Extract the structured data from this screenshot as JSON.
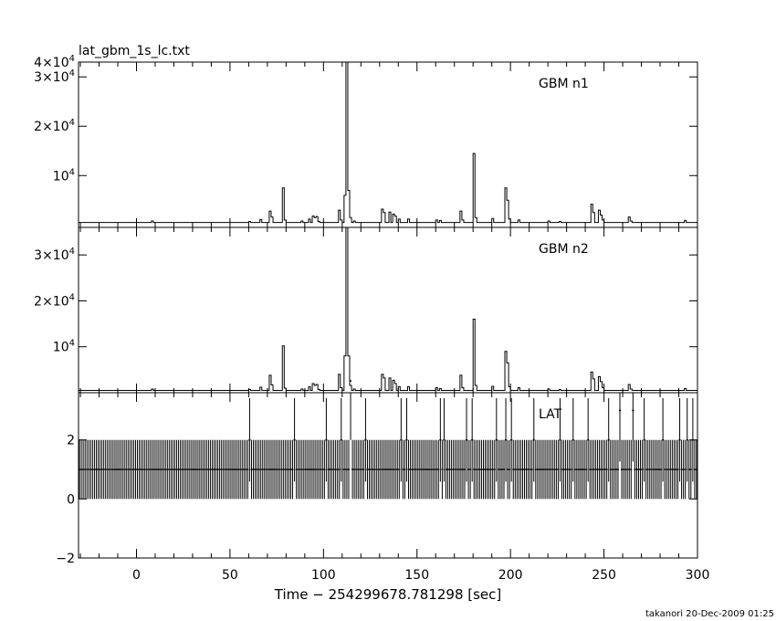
{
  "chart_data": {
    "type": "line",
    "title": "lat_gbm_1s_lc.txt",
    "xlabel": "Time − 254299678.781298 [sec]",
    "xlim": [
      -31,
      300
    ],
    "x_ticks": [
      0,
      50,
      100,
      150,
      200,
      250,
      300
    ],
    "x_tick_labels": [
      "0",
      "50",
      "100",
      "150",
      "200",
      "250",
      "300"
    ],
    "grid": false,
    "footer": "takanori 20-Dec-2009 01:25",
    "panels": [
      {
        "name": "GBM n1",
        "type": "line",
        "ylim": [
          -500,
          33000
        ],
        "y_ticks": [
          10000,
          20000,
          30000,
          40000
        ],
        "y_tick_labels": [
          {
            "mantissa": "",
            "exponent": "4"
          },
          {
            "mantissa": "2×",
            "exponent": "4"
          },
          {
            "mantissa": "3×",
            "exponent": "4"
          },
          {
            "mantissa": "4×",
            "exponent": "4"
          }
        ],
        "baseline": 500,
        "series": [
          {
            "name": "GBM n1",
            "x": [
              8,
              60,
              66,
              71,
              72,
              78,
              79,
              88,
              92,
              94,
              95,
              96,
              97,
              108,
              109,
              111,
              112,
              113,
              114,
              116,
              131,
              132,
              135,
              137,
              138,
              140,
              145,
              160,
              162,
              173,
              174,
              180,
              181,
              190,
              197,
              198,
              199,
              204,
              220,
              226,
              243,
              244,
              247,
              248,
              249,
              263,
              264,
              293
            ],
            "y": [
              800,
              700,
              1100,
              2800,
              1600,
              7500,
              1000,
              800,
              1200,
              1800,
              1500,
              1700,
              700,
              3000,
              1000,
              6000,
              34000,
              7000,
              1500,
              800,
              3200,
              2500,
              2600,
              2200,
              1800,
              1200,
              1200,
              1000,
              900,
              2800,
              1000,
              14500,
              1500,
              1300,
              7500,
              5000,
              1200,
              1000,
              800,
              700,
              4200,
              2500,
              3000,
              2000,
              1000,
              1600,
              800,
              900
            ]
          }
        ]
      },
      {
        "name": "GBM n2",
        "type": "line",
        "ylim": [
          0,
          36000
        ],
        "y_ticks": [
          10000,
          20000,
          30000
        ],
        "y_tick_labels": [
          {
            "mantissa": "",
            "exponent": "4"
          },
          {
            "mantissa": "2×",
            "exponent": "4"
          },
          {
            "mantissa": "3×",
            "exponent": "4"
          }
        ],
        "baseline": 500,
        "series": [
          {
            "name": "GBM n2",
            "x": [
              8,
              60,
              66,
              71,
              72,
              78,
              79,
              88,
              92,
              94,
              95,
              96,
              97,
              108,
              109,
              111,
              112,
              113,
              114,
              116,
              131,
              132,
              135,
              137,
              138,
              140,
              145,
              160,
              162,
              173,
              174,
              180,
              181,
              190,
              197,
              198,
              199,
              204,
              220,
              226,
              243,
              244,
              247,
              248,
              249,
              263,
              264,
              293
            ],
            "y": [
              800,
              700,
              1200,
              3800,
              1700,
              10200,
              1000,
              800,
              1300,
              2000,
              1600,
              1800,
              700,
              4000,
              1100,
              8000,
              38000,
              8000,
              1600,
              800,
              4000,
              3200,
              3200,
              2700,
              2000,
              1300,
              1300,
              1100,
              900,
              3800,
              1100,
              16000,
              1600,
              1400,
              9000,
              6500,
              1300,
              1100,
              800,
              700,
              4500,
              3000,
              3500,
              2400,
              1100,
              1800,
              800,
              900
            ]
          }
        ]
      },
      {
        "name": "LAT",
        "type": "line",
        "ylim": [
          -2,
          3.6
        ],
        "y_ticks": [
          -2,
          0,
          2
        ],
        "y_tick_labels": [
          {
            "mantissa": "−2",
            "exponent": ""
          },
          {
            "mantissa": "0",
            "exponent": ""
          },
          {
            "mantissa": "2",
            "exponent": ""
          }
        ],
        "samples_x_range": [
          -31,
          300
        ],
        "baseline_counts": 1,
        "error_counts": 1,
        "series": [
          {
            "name": "LAT",
            "x": [
              60,
              84,
              101,
              109,
              114,
              122,
              141,
              144,
              162,
              164,
              176,
              179,
              192,
              197,
              200,
              212,
              226,
              233,
              241,
              252,
              258,
              265,
              271,
              281,
              290,
              294,
              297
            ],
            "y": [
              2,
              2,
              2,
              2,
              4,
              2,
              2,
              2,
              2,
              2,
              2,
              2,
              2,
              2,
              2,
              2,
              2,
              2,
              2,
              2,
              3,
              3,
              2,
              2,
              2,
              2,
              2
            ]
          }
        ]
      }
    ]
  }
}
